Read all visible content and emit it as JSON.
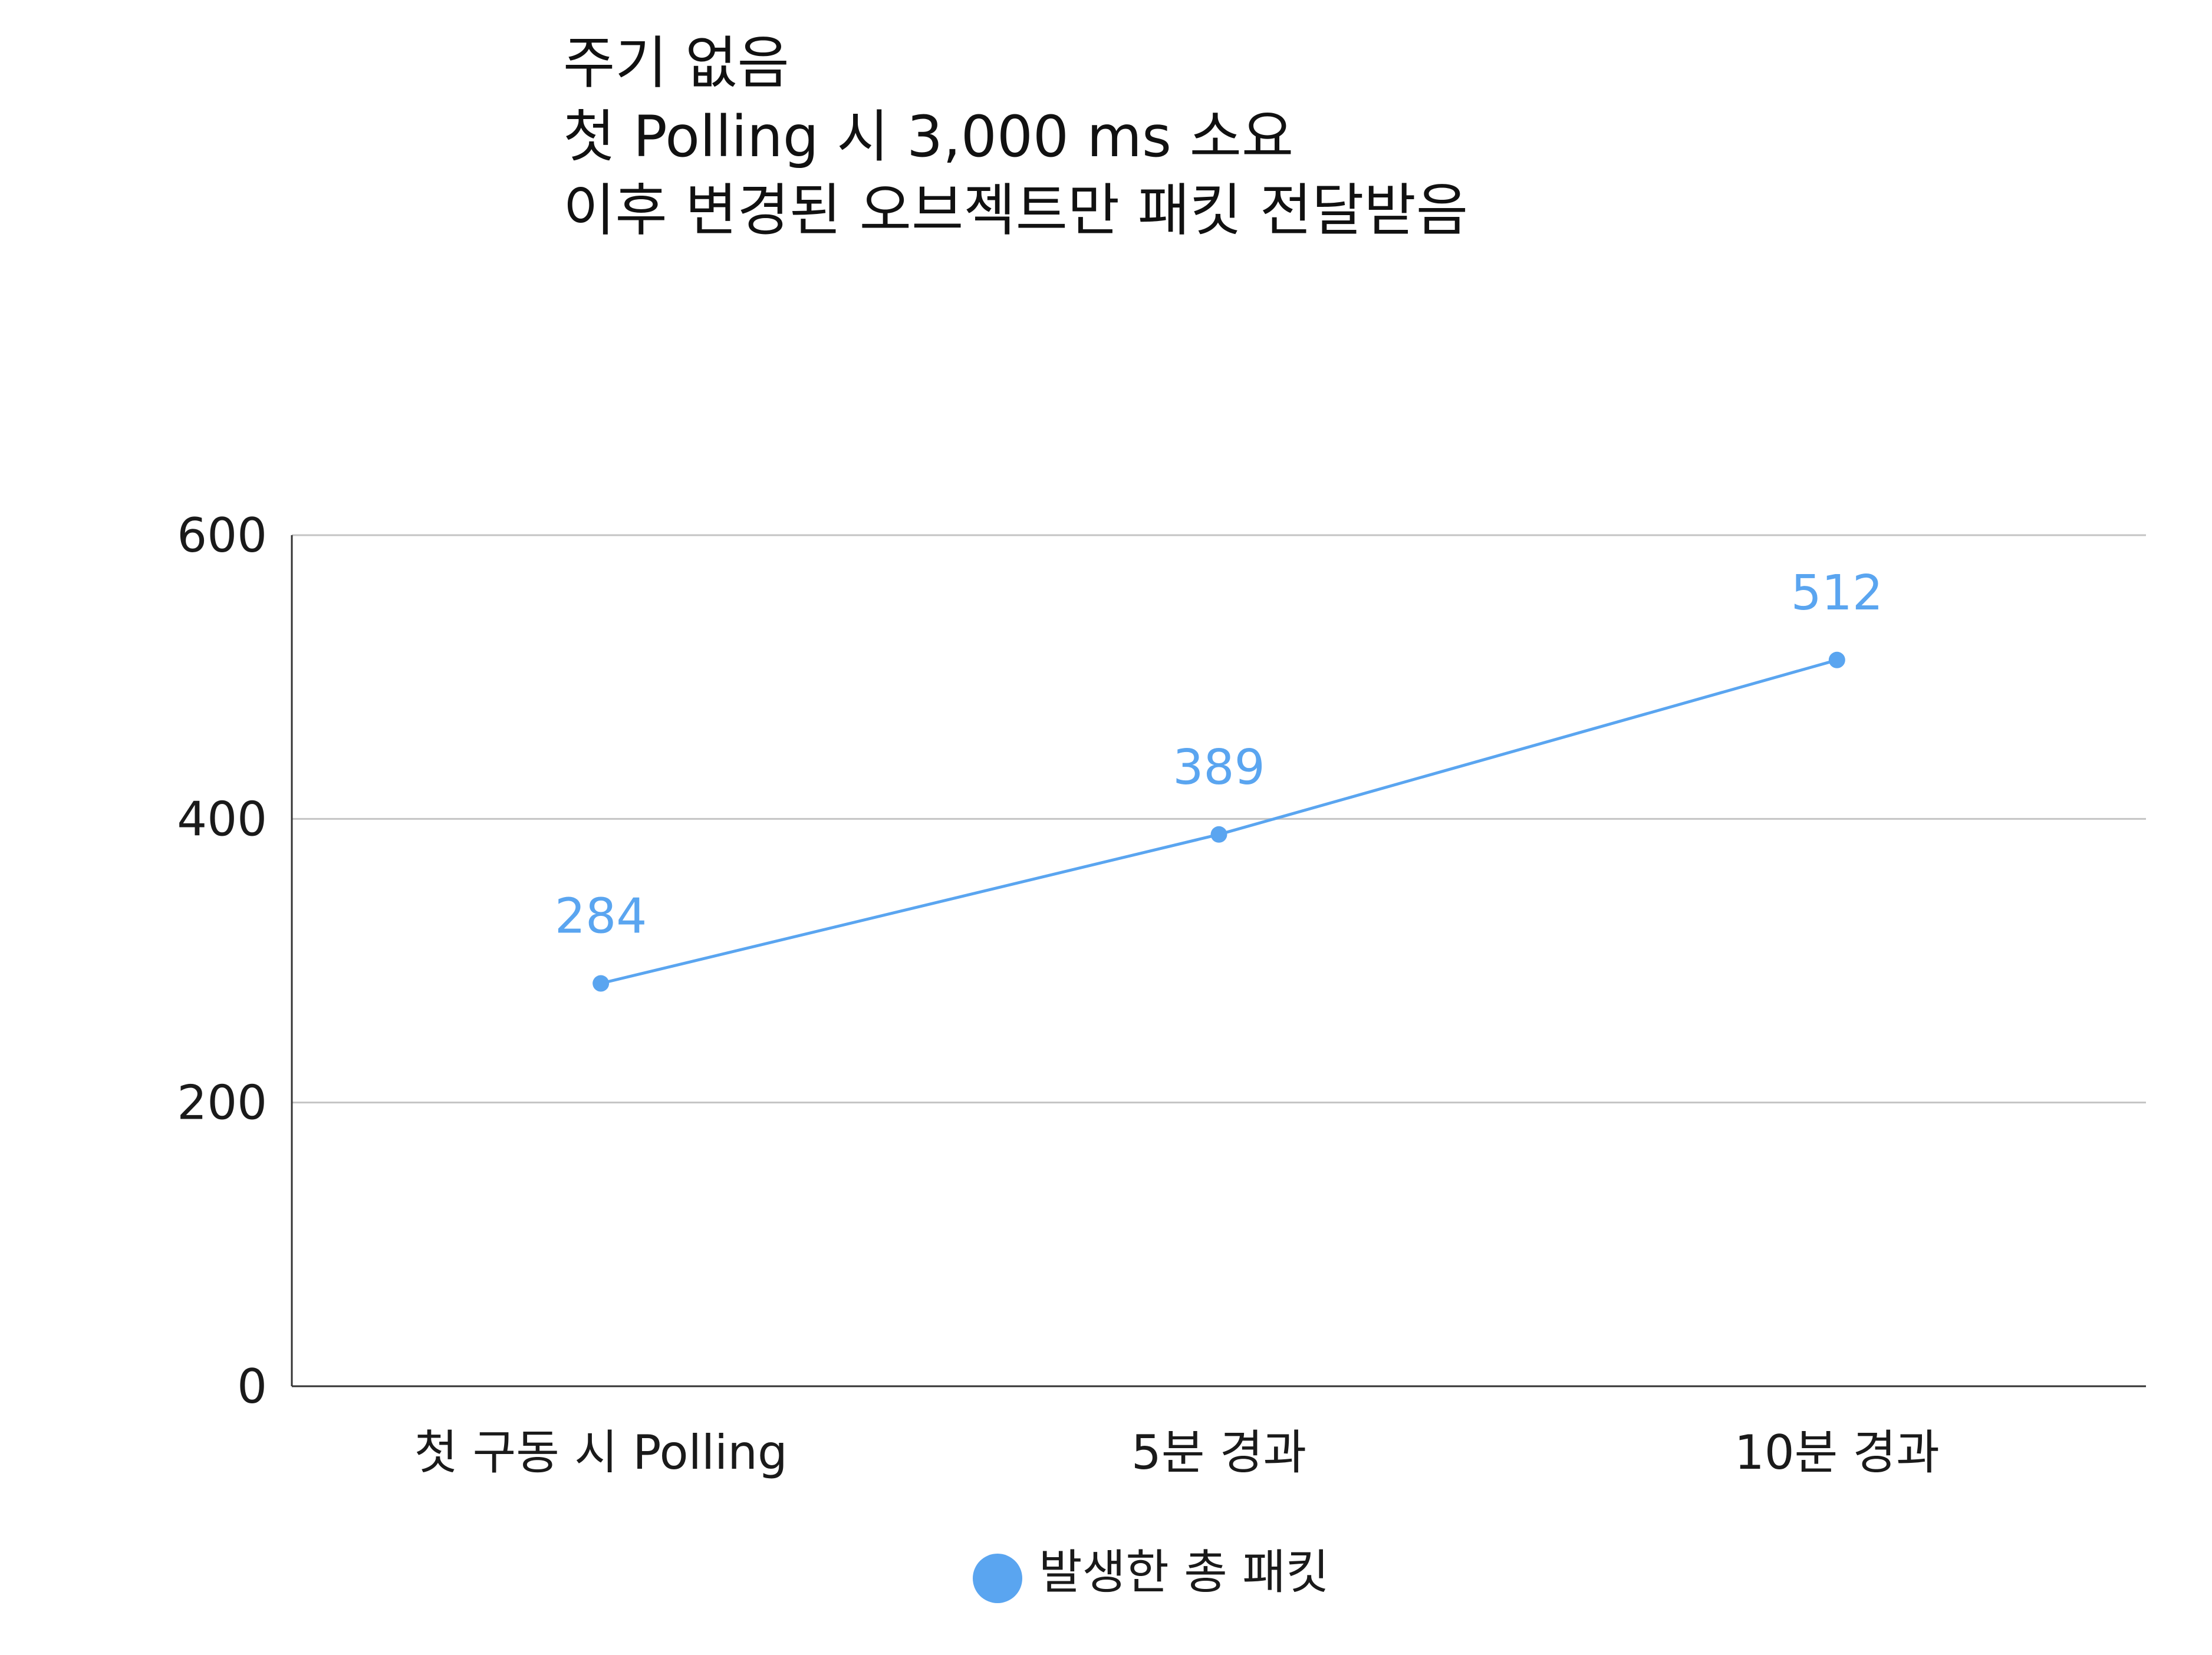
{
  "chart_data": {
    "type": "line",
    "title_lines": [
      "주기 없음",
      "첫 Polling 시 3,000 ms 소요",
      "이후 변경된 오브젝트만 패킷 전달받음"
    ],
    "categories": [
      "첫 구동 시 Polling",
      "5분 경과",
      "10분 경과"
    ],
    "series": [
      {
        "name": "발생한 총 패킷",
        "values": [
          284,
          389,
          512
        ],
        "color": "#5aa5f0"
      }
    ],
    "y_ticks": [
      "0",
      "200",
      "400",
      "600"
    ],
    "ylim": [
      0,
      600
    ],
    "grid": true,
    "legend_position": "bottom",
    "data_labels": true
  }
}
